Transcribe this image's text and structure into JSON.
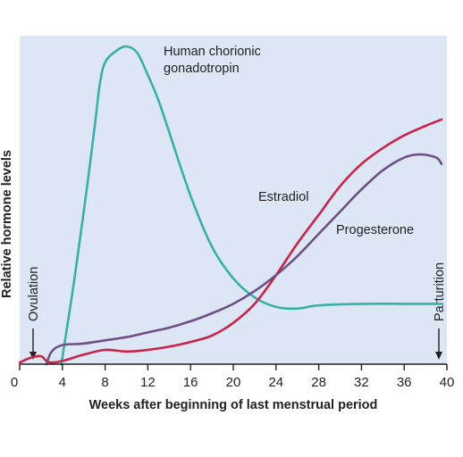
{
  "chart_data": {
    "type": "line",
    "xlabel": "Weeks after beginning of last menstrual period",
    "ylabel": "Relative hormone levels",
    "xlim": [
      0,
      40
    ],
    "xticks": [
      "0",
      "4",
      "8",
      "12",
      "16",
      "20",
      "24",
      "28",
      "32",
      "36",
      "40"
    ],
    "grid": false,
    "legend": "none",
    "background_color": "#dde6f5",
    "series": [
      {
        "name": "Human chorionic gonadotropin",
        "color": "#3aafa9",
        "x": [
          3.9,
          5,
          6,
          7,
          7.5,
          8,
          9,
          10,
          11,
          12,
          13,
          14,
          16,
          18,
          20,
          22,
          24,
          26,
          28,
          32,
          36,
          39.5
        ],
        "y": [
          0,
          0.24,
          0.48,
          0.74,
          0.88,
          0.95,
          0.985,
          1.0,
          0.98,
          0.91,
          0.83,
          0.73,
          0.53,
          0.37,
          0.27,
          0.21,
          0.18,
          0.175,
          0.185,
          0.19,
          0.19,
          0.19
        ]
      },
      {
        "name": "Estradiol",
        "color": "#c8234a",
        "x": [
          0,
          1,
          2,
          2.5,
          3,
          4,
          6,
          8,
          10,
          12,
          14,
          16,
          18,
          20,
          22,
          24,
          26,
          28,
          30,
          32,
          34,
          36,
          38,
          39.5
        ],
        "y": [
          0.005,
          0.02,
          0.025,
          0.01,
          0.005,
          0.01,
          0.03,
          0.045,
          0.04,
          0.045,
          0.055,
          0.07,
          0.09,
          0.13,
          0.19,
          0.28,
          0.38,
          0.47,
          0.56,
          0.63,
          0.68,
          0.72,
          0.75,
          0.77
        ]
      },
      {
        "name": "Progesterone",
        "color": "#6e4f86",
        "x": [
          2.5,
          3,
          4,
          6,
          8,
          10,
          12,
          14,
          16,
          18,
          20,
          22,
          24,
          26,
          28,
          30,
          32,
          34,
          36,
          37.5,
          39,
          39.5
        ],
        "y": [
          0.0,
          0.04,
          0.06,
          0.065,
          0.075,
          0.085,
          0.1,
          0.115,
          0.135,
          0.16,
          0.19,
          0.23,
          0.28,
          0.34,
          0.41,
          0.48,
          0.55,
          0.61,
          0.65,
          0.66,
          0.65,
          0.63
        ]
      }
    ],
    "annotations": [
      {
        "text": "Ovulation",
        "x": 2
      },
      {
        "text": "Parturition",
        "x": 39.5
      }
    ]
  }
}
